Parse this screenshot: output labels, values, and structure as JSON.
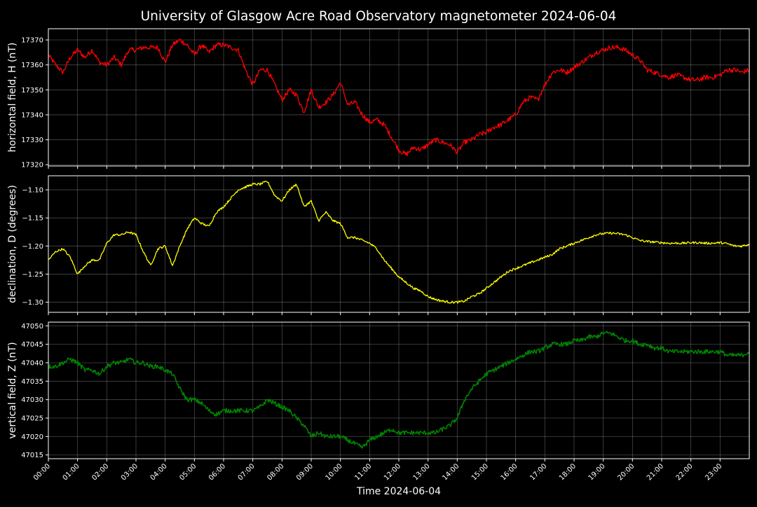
{
  "chart_data": {
    "type": "line",
    "title": "University of Glasgow Acre Road Observatory magnetometer 2024-06-04",
    "xlabel": "Time 2024-06-04",
    "xlim": [
      0,
      24
    ],
    "x_ticks": [
      "00:00",
      "01:00",
      "02:00",
      "03:00",
      "04:00",
      "05:00",
      "06:00",
      "07:00",
      "08:00",
      "09:00",
      "10:00",
      "11:00",
      "12:00",
      "13:00",
      "14:00",
      "15:00",
      "16:00",
      "17:00",
      "18:00",
      "19:00",
      "20:00",
      "21:00",
      "22:00",
      "23:00"
    ],
    "grid": true,
    "panels": [
      {
        "ylabel": "horizontal field, H (nT)",
        "color": "#ff0000",
        "ylim": [
          17319.5,
          17374.5
        ],
        "yticks": [
          17320,
          17330,
          17340,
          17350,
          17360,
          17370
        ],
        "ytick_labels": [
          "17320",
          "17330",
          "17340",
          "17350",
          "17360",
          "17370"
        ],
        "noise": 1.0,
        "series": [
          {
            "x": [
              0,
              0.25,
              0.5,
              0.75,
              1,
              1.25,
              1.5,
              1.75,
              2,
              2.25,
              2.5,
              2.75,
              3,
              3.25,
              3.5,
              3.75,
              4,
              4.25,
              4.5,
              4.75,
              5,
              5.25,
              5.5,
              5.75,
              6,
              6.25,
              6.5,
              6.75,
              7,
              7.25,
              7.5,
              7.75,
              8,
              8.25,
              8.5,
              8.75,
              9,
              9.25,
              9.5,
              9.75,
              10,
              10.25,
              10.5,
              10.75,
              11,
              11.25,
              11.5,
              11.75,
              12,
              12.25,
              12.5,
              12.75,
              13,
              13.25,
              13.5,
              13.75,
              14,
              14.25,
              14.5,
              14.75,
              15,
              15.25,
              15.5,
              15.75,
              16,
              16.25,
              16.5,
              16.75,
              17,
              17.25,
              17.5,
              17.75,
              18,
              18.25,
              18.5,
              18.75,
              19,
              19.25,
              19.5,
              19.75,
              20,
              20.25,
              20.5,
              20.75,
              21,
              21.25,
              21.5,
              21.75,
              22,
              22.25,
              22.5,
              22.75,
              23,
              23.25,
              23.5,
              23.75,
              24
            ],
            "y": [
              17364,
              17360,
              17357,
              17363,
              17366,
              17363,
              17366,
              17361,
              17360,
              17363,
              17360,
              17366,
              17366,
              17367,
              17367,
              17367,
              17361,
              17368,
              17370,
              17368,
              17364,
              17368,
              17365,
              17368,
              17368,
              17367,
              17366,
              17358,
              17352,
              17358,
              17358,
              17352,
              17346,
              17350,
              17348,
              17341,
              17350,
              17343,
              17345,
              17348,
              17353,
              17344,
              17345,
              17340,
              17337,
              17338,
              17336,
              17331,
              17326,
              17324,
              17327,
              17326,
              17328,
              17330,
              17329,
              17328,
              17325,
              17329,
              17330,
              17332,
              17333,
              17335,
              17336,
              17338,
              17340,
              17345,
              17347,
              17346,
              17352,
              17357,
              17358,
              17357,
              17359,
              17361,
              17363,
              17365,
              17366,
              17367,
              17367,
              17366,
              17364,
              17362,
              17358,
              17357,
              17356,
              17355,
              17356,
              17355,
              17354,
              17354,
              17355,
              17355,
              17356,
              17358,
              17358,
              17357,
              17358
            ]
          }
        ]
      },
      {
        "ylabel": "declination, D (degrees)",
        "color": "#ffff00",
        "ylim": [
          -1.318,
          -1.075
        ],
        "yticks": [
          -1.3,
          -1.25,
          -1.2,
          -1.15,
          -1.1
        ],
        "ytick_labels": [
          "−1.30",
          "−1.25",
          "−1.20",
          "−1.15",
          "−1.10"
        ],
        "noise": 0.002,
        "series": [
          {
            "x": [
              0,
              0.25,
              0.5,
              0.75,
              1,
              1.25,
              1.5,
              1.75,
              2,
              2.25,
              2.5,
              2.75,
              3,
              3.25,
              3.5,
              3.75,
              4,
              4.25,
              4.5,
              4.75,
              5,
              5.25,
              5.5,
              5.75,
              6,
              6.25,
              6.5,
              6.75,
              7,
              7.25,
              7.5,
              7.75,
              8,
              8.25,
              8.5,
              8.75,
              9,
              9.25,
              9.5,
              9.75,
              10,
              10.25,
              10.5,
              10.75,
              11,
              11.25,
              11.5,
              11.75,
              12,
              12.25,
              12.5,
              12.75,
              13,
              13.25,
              13.5,
              13.75,
              14,
              14.25,
              14.5,
              14.75,
              15,
              15.25,
              15.5,
              15.75,
              16,
              16.25,
              16.5,
              16.75,
              17,
              17.25,
              17.5,
              17.75,
              18,
              18.25,
              18.5,
              18.75,
              19,
              19.25,
              19.5,
              19.75,
              20,
              20.25,
              20.5,
              20.75,
              21,
              21.25,
              21.5,
              21.75,
              22,
              22.25,
              22.5,
              22.75,
              23,
              23.25,
              23.5,
              23.75,
              24
            ],
            "y": [
              -1.225,
              -1.21,
              -1.205,
              -1.22,
              -1.25,
              -1.235,
              -1.225,
              -1.225,
              -1.195,
              -1.18,
              -1.18,
              -1.175,
              -1.18,
              -1.21,
              -1.235,
              -1.205,
              -1.2,
              -1.235,
              -1.2,
              -1.17,
              -1.15,
              -1.16,
              -1.165,
              -1.14,
              -1.13,
              -1.115,
              -1.1,
              -1.095,
              -1.09,
              -1.09,
              -1.085,
              -1.11,
              -1.12,
              -1.1,
              -1.09,
              -1.13,
              -1.12,
              -1.155,
              -1.14,
              -1.155,
              -1.16,
              -1.185,
              -1.185,
              -1.19,
              -1.195,
              -1.205,
              -1.225,
              -1.24,
              -1.255,
              -1.265,
              -1.275,
              -1.28,
              -1.29,
              -1.295,
              -1.298,
              -1.3,
              -1.3,
              -1.298,
              -1.29,
              -1.285,
              -1.275,
              -1.265,
              -1.255,
              -1.245,
              -1.24,
              -1.235,
              -1.23,
              -1.225,
              -1.22,
              -1.215,
              -1.205,
              -1.2,
              -1.195,
              -1.19,
              -1.185,
              -1.18,
              -1.178,
              -1.177,
              -1.178,
              -1.18,
              -1.185,
              -1.19,
              -1.192,
              -1.193,
              -1.194,
              -1.195,
              -1.195,
              -1.195,
              -1.194,
              -1.194,
              -1.195,
              -1.195,
              -1.194,
              -1.196,
              -1.2,
              -1.2,
              -1.197
            ]
          }
        ]
      },
      {
        "ylabel": "vertical field, Z (nT)",
        "color": "#008000",
        "ylim": [
          47014,
          47051
        ],
        "yticks": [
          47015,
          47020,
          47025,
          47030,
          47035,
          47040,
          47045,
          47050
        ],
        "ytick_labels": [
          "47015",
          "47020",
          "47025",
          "47030",
          "47035",
          "47040",
          "47045",
          "47050"
        ],
        "noise": 0.6,
        "series": [
          {
            "x": [
              0,
              0.25,
              0.5,
              0.75,
              1,
              1.25,
              1.5,
              1.75,
              2,
              2.25,
              2.5,
              2.75,
              3,
              3.25,
              3.5,
              3.75,
              4,
              4.25,
              4.5,
              4.75,
              5,
              5.25,
              5.5,
              5.75,
              6,
              6.25,
              6.5,
              6.75,
              7,
              7.25,
              7.5,
              7.75,
              8,
              8.25,
              8.5,
              8.75,
              9,
              9.25,
              9.5,
              9.75,
              10,
              10.25,
              10.5,
              10.75,
              11,
              11.25,
              11.5,
              11.75,
              12,
              12.25,
              12.5,
              12.75,
              13,
              13.25,
              13.5,
              13.75,
              14,
              14.25,
              14.5,
              14.75,
              15,
              15.25,
              15.5,
              15.75,
              16,
              16.25,
              16.5,
              16.75,
              17,
              17.25,
              17.5,
              17.75,
              18,
              18.25,
              18.5,
              18.75,
              19,
              19.25,
              19.5,
              19.75,
              20,
              20.25,
              20.5,
              20.75,
              21,
              21.25,
              21.5,
              21.75,
              22,
              22.25,
              22.5,
              22.75,
              23,
              23.25,
              23.5,
              23.75,
              24
            ],
            "y": [
              47039,
              47039,
              47040,
              47041,
              47040,
              47038,
              47038,
              47037,
              47039,
              47040,
              47040,
              47041,
              47040,
              47040,
              47039,
              47039,
              47038,
              47037,
              47033,
              47030,
              47030,
              47029,
              47027,
              47026,
              47027,
              47027,
              47027,
              47027,
              47027,
              47028,
              47030,
              47029,
              47028,
              47027,
              47025,
              47023,
              47020,
              47021,
              47020,
              47020,
              47020,
              47019,
              47018,
              47017,
              47019,
              47020,
              47021,
              47022,
              47021,
              47021,
              47021,
              47021,
              47021,
              47021,
              47022,
              47023,
              47025,
              47030,
              47033,
              47035,
              47037,
              47038,
              47039,
              47040,
              47041,
              47042,
              47043,
              47043,
              47044,
              47045,
              47045,
              47045,
              47046,
              47046,
              47047,
              47047,
              47048,
              47048,
              47047,
              47046,
              47046,
              47045,
              47045,
              47044,
              47044,
              47043,
              47043,
              47043,
              47043,
              47043,
              47043,
              47043,
              47043,
              47042,
              47042,
              47042,
              47043
            ]
          }
        ]
      }
    ]
  }
}
